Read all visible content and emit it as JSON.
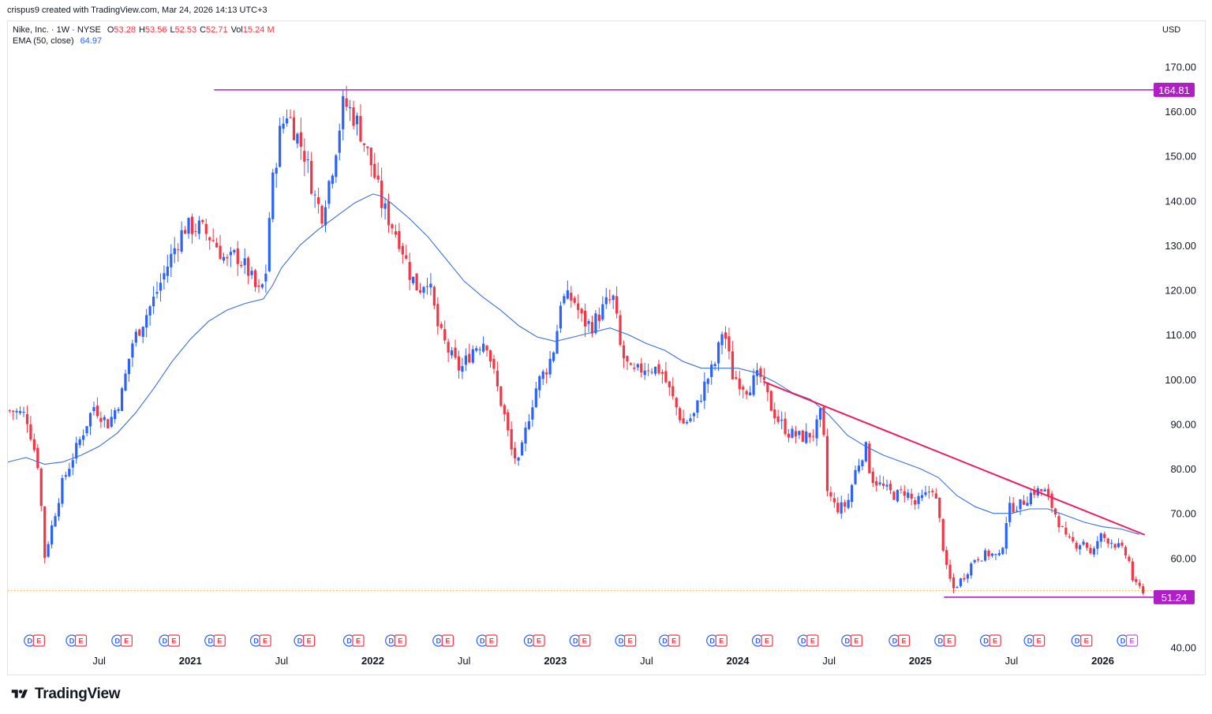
{
  "header": {
    "created_by": "crispus9 created with TradingView.com, Mar 24, 2026 14:13 UTC+3"
  },
  "legend": {
    "symbol": "Nike, Inc. · 1W · NYSE",
    "o_label": "O",
    "o_value": "53.28",
    "h_label": "H",
    "h_value": "53.56",
    "l_label": "L",
    "l_value": "52.53",
    "c_label": "C",
    "c_value": "52.71",
    "vol_label": "Vol",
    "vol_value": "15.24 M",
    "ema_label": "EMA (50, close)",
    "ema_value": "64.97"
  },
  "currency": "USD",
  "brand": {
    "name": "TradingView",
    "logo_icon": "tradingview-logo-icon"
  },
  "colors": {
    "up": "#2962ff",
    "down": "#f23645",
    "ema": "#3b6fd6",
    "horizontal_line": "#b01fc6",
    "trendline": "#e91e63",
    "price_dotted": "#f5a742",
    "dividend_event": "#2962ff",
    "earnings_event": "#f23645",
    "future_earnings": "#c653d8"
  },
  "chart_data": {
    "type": "candlestick",
    "title": "Nike, Inc. · 1W · NYSE",
    "ylim": [
      40,
      175
    ],
    "y_ticks": [
      "170.00",
      "160.00",
      "150.00",
      "140.00",
      "130.00",
      "120.00",
      "110.00",
      "100.00",
      "90.00",
      "80.00",
      "70.00",
      "60.00",
      "40.00"
    ],
    "y_tick_values": [
      170,
      160,
      150,
      140,
      130,
      120,
      110,
      100,
      90,
      80,
      70,
      60,
      40
    ],
    "x_ticks": [
      {
        "label": "Jul",
        "year": false,
        "t": 2020.5
      },
      {
        "label": "2021",
        "year": true,
        "t": 2021.0
      },
      {
        "label": "Jul",
        "year": false,
        "t": 2021.5
      },
      {
        "label": "2022",
        "year": true,
        "t": 2022.0
      },
      {
        "label": "Jul",
        "year": false,
        "t": 2022.5
      },
      {
        "label": "2023",
        "year": true,
        "t": 2023.0
      },
      {
        "label": "Jul",
        "year": false,
        "t": 2023.5
      },
      {
        "label": "2024",
        "year": true,
        "t": 2024.0
      },
      {
        "label": "Jul",
        "year": false,
        "t": 2024.5
      },
      {
        "label": "2025",
        "year": true,
        "t": 2025.0
      },
      {
        "label": "Jul",
        "year": false,
        "t": 2025.5
      },
      {
        "label": "2026",
        "year": true,
        "t": 2026.0
      }
    ],
    "price_labels": [
      {
        "value": 164.81,
        "text": "164.81"
      },
      {
        "value": 51.24,
        "text": "51.24"
      }
    ],
    "horizontal_lines": [
      {
        "value": 164.81,
        "t_start": 2021.13,
        "t_end": 2026.54
      },
      {
        "value": 51.24,
        "t_start": 2025.13,
        "t_end": 2026.54
      }
    ],
    "current_price": 52.71,
    "trendline": {
      "t1": 2024.14,
      "v1": 99.5,
      "t2": 2026.23,
      "v2": 65.2
    },
    "anchors": [
      {
        "t": 2020.02,
        "v": 93
      },
      {
        "t": 2020.1,
        "v": 92
      },
      {
        "t": 2020.17,
        "v": 80
      },
      {
        "t": 2020.2,
        "v": 60
      },
      {
        "t": 2020.24,
        "v": 67
      },
      {
        "t": 2020.3,
        "v": 77
      },
      {
        "t": 2020.35,
        "v": 82
      },
      {
        "t": 2020.4,
        "v": 87
      },
      {
        "t": 2020.47,
        "v": 94
      },
      {
        "t": 2020.55,
        "v": 90
      },
      {
        "t": 2020.62,
        "v": 96
      },
      {
        "t": 2020.68,
        "v": 108
      },
      {
        "t": 2020.74,
        "v": 113
      },
      {
        "t": 2020.8,
        "v": 118
      },
      {
        "t": 2020.86,
        "v": 124
      },
      {
        "t": 2020.93,
        "v": 131
      },
      {
        "t": 2020.97,
        "v": 134
      },
      {
        "t": 2021.05,
        "v": 134
      },
      {
        "t": 2021.13,
        "v": 131
      },
      {
        "t": 2021.2,
        "v": 126
      },
      {
        "t": 2021.25,
        "v": 128
      },
      {
        "t": 2021.32,
        "v": 124
      },
      {
        "t": 2021.37,
        "v": 119
      },
      {
        "t": 2021.41,
        "v": 122
      },
      {
        "t": 2021.44,
        "v": 141
      },
      {
        "t": 2021.49,
        "v": 155
      },
      {
        "t": 2021.53,
        "v": 160
      },
      {
        "t": 2021.58,
        "v": 155
      },
      {
        "t": 2021.63,
        "v": 150
      },
      {
        "t": 2021.68,
        "v": 141
      },
      {
        "t": 2021.72,
        "v": 137
      },
      {
        "t": 2021.78,
        "v": 148
      },
      {
        "t": 2021.84,
        "v": 162
      },
      {
        "t": 2021.88,
        "v": 160
      },
      {
        "t": 2021.92,
        "v": 157
      },
      {
        "t": 2021.96,
        "v": 152
      },
      {
        "t": 2022.0,
        "v": 147
      },
      {
        "t": 2022.05,
        "v": 139
      },
      {
        "t": 2022.1,
        "v": 135
      },
      {
        "t": 2022.15,
        "v": 131
      },
      {
        "t": 2022.2,
        "v": 124
      },
      {
        "t": 2022.25,
        "v": 120
      },
      {
        "t": 2022.3,
        "v": 123
      },
      {
        "t": 2022.36,
        "v": 111
      },
      {
        "t": 2022.43,
        "v": 105
      },
      {
        "t": 2022.48,
        "v": 102
      },
      {
        "t": 2022.55,
        "v": 107
      },
      {
        "t": 2022.62,
        "v": 109
      },
      {
        "t": 2022.67,
        "v": 100
      },
      {
        "t": 2022.72,
        "v": 92
      },
      {
        "t": 2022.76,
        "v": 84
      },
      {
        "t": 2022.8,
        "v": 81
      },
      {
        "t": 2022.85,
        "v": 91
      },
      {
        "t": 2022.9,
        "v": 99
      },
      {
        "t": 2022.96,
        "v": 103
      },
      {
        "t": 2023.0,
        "v": 108
      },
      {
        "t": 2023.03,
        "v": 118
      },
      {
        "t": 2023.1,
        "v": 118
      },
      {
        "t": 2023.15,
        "v": 113
      },
      {
        "t": 2023.2,
        "v": 112
      },
      {
        "t": 2023.28,
        "v": 117
      },
      {
        "t": 2023.32,
        "v": 118
      },
      {
        "t": 2023.36,
        "v": 106
      },
      {
        "t": 2023.42,
        "v": 101
      },
      {
        "t": 2023.5,
        "v": 103
      },
      {
        "t": 2023.58,
        "v": 102
      },
      {
        "t": 2023.65,
        "v": 95
      },
      {
        "t": 2023.7,
        "v": 90
      },
      {
        "t": 2023.76,
        "v": 92
      },
      {
        "t": 2023.82,
        "v": 99
      },
      {
        "t": 2023.88,
        "v": 104
      },
      {
        "t": 2023.92,
        "v": 112
      },
      {
        "t": 2023.97,
        "v": 101
      },
      {
        "t": 2024.05,
        "v": 98
      },
      {
        "t": 2024.12,
        "v": 101
      },
      {
        "t": 2024.18,
        "v": 94
      },
      {
        "t": 2024.22,
        "v": 91
      },
      {
        "t": 2024.28,
        "v": 88
      },
      {
        "t": 2024.35,
        "v": 87
      },
      {
        "t": 2024.42,
        "v": 88
      },
      {
        "t": 2024.46,
        "v": 93
      },
      {
        "t": 2024.49,
        "v": 75
      },
      {
        "t": 2024.54,
        "v": 71
      },
      {
        "t": 2024.6,
        "v": 72
      },
      {
        "t": 2024.64,
        "v": 79
      },
      {
        "t": 2024.7,
        "v": 85
      },
      {
        "t": 2024.73,
        "v": 78
      },
      {
        "t": 2024.79,
        "v": 76
      },
      {
        "t": 2024.86,
        "v": 74
      },
      {
        "t": 2024.92,
        "v": 75
      },
      {
        "t": 2024.97,
        "v": 72
      },
      {
        "t": 2025.03,
        "v": 74
      },
      {
        "t": 2025.07,
        "v": 76
      },
      {
        "t": 2025.1,
        "v": 70
      },
      {
        "t": 2025.14,
        "v": 58
      },
      {
        "t": 2025.18,
        "v": 53
      },
      {
        "t": 2025.24,
        "v": 56
      },
      {
        "t": 2025.3,
        "v": 60
      },
      {
        "t": 2025.38,
        "v": 61
      },
      {
        "t": 2025.44,
        "v": 60
      },
      {
        "t": 2025.48,
        "v": 71
      },
      {
        "t": 2025.55,
        "v": 72
      },
      {
        "t": 2025.62,
        "v": 75
      },
      {
        "t": 2025.68,
        "v": 75
      },
      {
        "t": 2025.74,
        "v": 70
      },
      {
        "t": 2025.8,
        "v": 64
      },
      {
        "t": 2025.86,
        "v": 63
      },
      {
        "t": 2025.9,
        "v": 64
      },
      {
        "t": 2025.94,
        "v": 60
      },
      {
        "t": 2025.98,
        "v": 65
      },
      {
        "t": 2026.04,
        "v": 64
      },
      {
        "t": 2026.1,
        "v": 62
      },
      {
        "t": 2026.14,
        "v": 60
      },
      {
        "t": 2026.17,
        "v": 54
      },
      {
        "t": 2026.225,
        "v": 52.7
      }
    ],
    "ema_points": [
      {
        "t": 2020.0,
        "v": 81.5
      },
      {
        "t": 2020.1,
        "v": 82.5
      },
      {
        "t": 2020.2,
        "v": 81.0
      },
      {
        "t": 2020.3,
        "v": 81.5
      },
      {
        "t": 2020.4,
        "v": 83.0
      },
      {
        "t": 2020.5,
        "v": 85.0
      },
      {
        "t": 2020.6,
        "v": 88.0
      },
      {
        "t": 2020.7,
        "v": 92.5
      },
      {
        "t": 2020.8,
        "v": 98.0
      },
      {
        "t": 2020.9,
        "v": 104.0
      },
      {
        "t": 2021.0,
        "v": 109.0
      },
      {
        "t": 2021.1,
        "v": 113.0
      },
      {
        "t": 2021.2,
        "v": 115.5
      },
      {
        "t": 2021.3,
        "v": 117.0
      },
      {
        "t": 2021.4,
        "v": 118.0
      },
      {
        "t": 2021.45,
        "v": 121.0
      },
      {
        "t": 2021.5,
        "v": 125.0
      },
      {
        "t": 2021.6,
        "v": 130.0
      },
      {
        "t": 2021.7,
        "v": 133.5
      },
      {
        "t": 2021.8,
        "v": 136.5
      },
      {
        "t": 2021.9,
        "v": 139.5
      },
      {
        "t": 2022.0,
        "v": 141.5
      },
      {
        "t": 2022.05,
        "v": 141.0
      },
      {
        "t": 2022.1,
        "v": 139.5
      },
      {
        "t": 2022.2,
        "v": 136.0
      },
      {
        "t": 2022.3,
        "v": 132.0
      },
      {
        "t": 2022.4,
        "v": 127.0
      },
      {
        "t": 2022.5,
        "v": 122.0
      },
      {
        "t": 2022.6,
        "v": 118.5
      },
      {
        "t": 2022.7,
        "v": 115.5
      },
      {
        "t": 2022.8,
        "v": 112.0
      },
      {
        "t": 2022.9,
        "v": 109.5
      },
      {
        "t": 2023.0,
        "v": 108.5
      },
      {
        "t": 2023.1,
        "v": 109.5
      },
      {
        "t": 2023.2,
        "v": 110.5
      },
      {
        "t": 2023.3,
        "v": 111.5
      },
      {
        "t": 2023.4,
        "v": 110.0
      },
      {
        "t": 2023.5,
        "v": 108.0
      },
      {
        "t": 2023.6,
        "v": 106.5
      },
      {
        "t": 2023.7,
        "v": 104.0
      },
      {
        "t": 2023.8,
        "v": 102.5
      },
      {
        "t": 2023.9,
        "v": 102.5
      },
      {
        "t": 2024.0,
        "v": 102.5
      },
      {
        "t": 2024.1,
        "v": 101.5
      },
      {
        "t": 2024.2,
        "v": 99.5
      },
      {
        "t": 2024.3,
        "v": 97.0
      },
      {
        "t": 2024.4,
        "v": 95.5
      },
      {
        "t": 2024.5,
        "v": 92.0
      },
      {
        "t": 2024.6,
        "v": 87.5
      },
      {
        "t": 2024.7,
        "v": 85.0
      },
      {
        "t": 2024.8,
        "v": 83.0
      },
      {
        "t": 2024.9,
        "v": 81.5
      },
      {
        "t": 2025.0,
        "v": 80.0
      },
      {
        "t": 2025.1,
        "v": 78.0
      },
      {
        "t": 2025.2,
        "v": 74.0
      },
      {
        "t": 2025.3,
        "v": 71.5
      },
      {
        "t": 2025.4,
        "v": 70.0
      },
      {
        "t": 2025.5,
        "v": 70.0
      },
      {
        "t": 2025.6,
        "v": 71.0
      },
      {
        "t": 2025.7,
        "v": 71.0
      },
      {
        "t": 2025.8,
        "v": 69.5
      },
      {
        "t": 2025.9,
        "v": 68.0
      },
      {
        "t": 2026.0,
        "v": 67.0
      },
      {
        "t": 2026.1,
        "v": 66.5
      },
      {
        "t": 2026.2,
        "v": 65.3
      }
    ],
    "events": [
      {
        "t": 2020.12,
        "type": "D",
        "label": "D"
      },
      {
        "t": 2020.17,
        "type": "E",
        "label": "E"
      },
      {
        "t": 2020.35,
        "type": "D",
        "label": "D"
      },
      {
        "t": 2020.4,
        "type": "E",
        "label": "E"
      },
      {
        "t": 2020.6,
        "type": "D",
        "label": "D"
      },
      {
        "t": 2020.65,
        "type": "E",
        "label": "E"
      },
      {
        "t": 2020.86,
        "type": "D",
        "label": "D"
      },
      {
        "t": 2020.91,
        "type": "E",
        "label": "E"
      },
      {
        "t": 2021.11,
        "type": "D",
        "label": "D"
      },
      {
        "t": 2021.16,
        "type": "E",
        "label": "E"
      },
      {
        "t": 2021.36,
        "type": "D",
        "label": "D"
      },
      {
        "t": 2021.41,
        "type": "E",
        "label": "E"
      },
      {
        "t": 2021.6,
        "type": "D",
        "label": "D"
      },
      {
        "t": 2021.65,
        "type": "E",
        "label": "E"
      },
      {
        "t": 2021.87,
        "type": "D",
        "label": "D"
      },
      {
        "t": 2021.92,
        "type": "E",
        "label": "E"
      },
      {
        "t": 2022.1,
        "type": "D",
        "label": "D"
      },
      {
        "t": 2022.15,
        "type": "E",
        "label": "E"
      },
      {
        "t": 2022.36,
        "type": "D",
        "label": "D"
      },
      {
        "t": 2022.41,
        "type": "E",
        "label": "E"
      },
      {
        "t": 2022.6,
        "type": "D",
        "label": "D"
      },
      {
        "t": 2022.65,
        "type": "E",
        "label": "E"
      },
      {
        "t": 2022.86,
        "type": "D",
        "label": "D"
      },
      {
        "t": 2022.91,
        "type": "E",
        "label": "E"
      },
      {
        "t": 2023.11,
        "type": "D",
        "label": "D"
      },
      {
        "t": 2023.16,
        "type": "E",
        "label": "E"
      },
      {
        "t": 2023.36,
        "type": "D",
        "label": "D"
      },
      {
        "t": 2023.41,
        "type": "E",
        "label": "E"
      },
      {
        "t": 2023.6,
        "type": "D",
        "label": "D"
      },
      {
        "t": 2023.65,
        "type": "E",
        "label": "E"
      },
      {
        "t": 2023.86,
        "type": "D",
        "label": "D"
      },
      {
        "t": 2023.91,
        "type": "E",
        "label": "E"
      },
      {
        "t": 2024.11,
        "type": "D",
        "label": "D"
      },
      {
        "t": 2024.16,
        "type": "E",
        "label": "E"
      },
      {
        "t": 2024.36,
        "type": "D",
        "label": "D"
      },
      {
        "t": 2024.41,
        "type": "E",
        "label": "E"
      },
      {
        "t": 2024.6,
        "type": "D",
        "label": "D"
      },
      {
        "t": 2024.65,
        "type": "E",
        "label": "E"
      },
      {
        "t": 2024.86,
        "type": "D",
        "label": "D"
      },
      {
        "t": 2024.91,
        "type": "E",
        "label": "E"
      },
      {
        "t": 2025.11,
        "type": "D",
        "label": "D"
      },
      {
        "t": 2025.16,
        "type": "E",
        "label": "E"
      },
      {
        "t": 2025.36,
        "type": "D",
        "label": "D"
      },
      {
        "t": 2025.41,
        "type": "E",
        "label": "E"
      },
      {
        "t": 2025.6,
        "type": "D",
        "label": "D"
      },
      {
        "t": 2025.65,
        "type": "E",
        "label": "E"
      },
      {
        "t": 2025.86,
        "type": "D",
        "label": "D"
      },
      {
        "t": 2025.91,
        "type": "E",
        "label": "E"
      },
      {
        "t": 2026.11,
        "type": "D",
        "label": "D"
      },
      {
        "t": 2026.16,
        "type": "E-future",
        "label": "E"
      }
    ]
  }
}
